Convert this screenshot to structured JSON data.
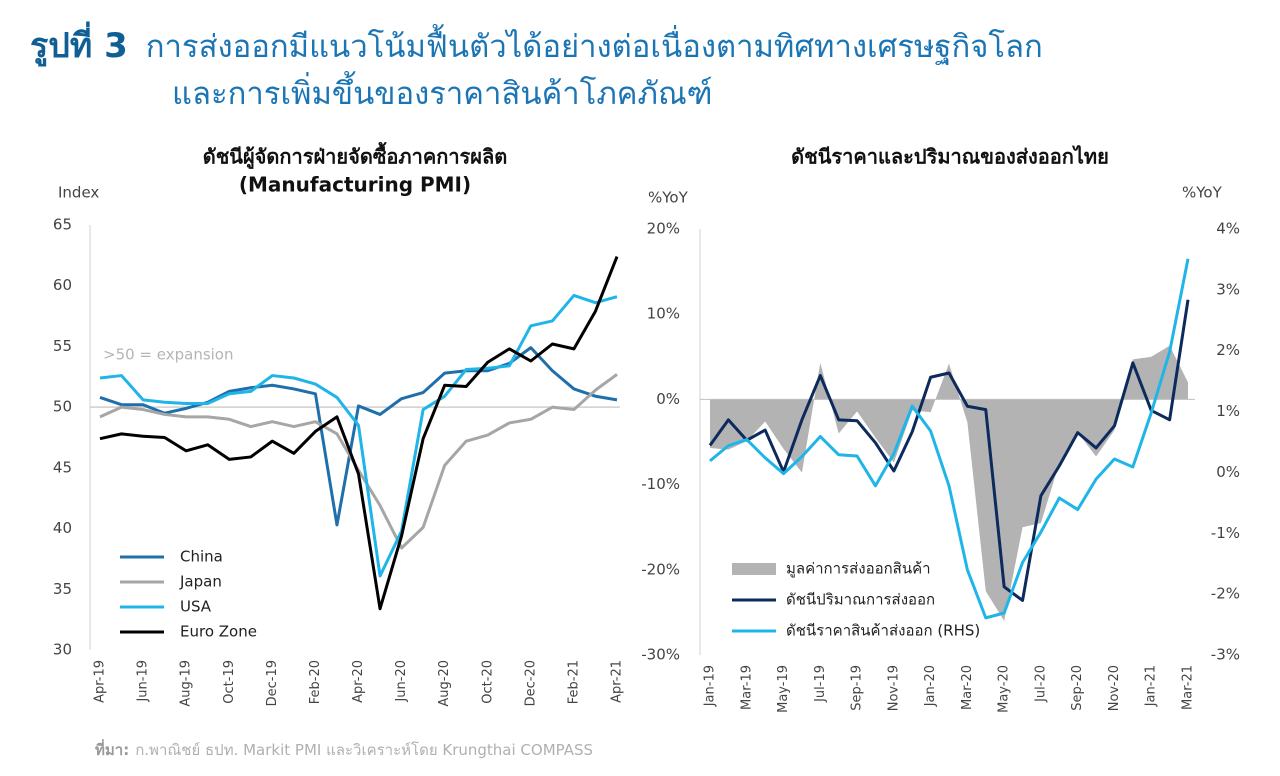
{
  "header": {
    "label": "รูปที่ 3",
    "title": [
      "การส่งออกมีแนวโน้มฟื้นตัวได้อย่างต่อเนื่องตามทิศทางเศรษฐกิจโลก",
      "และการเพิ่มขึ้นของราคาสินค้าโภคภัณฑ์"
    ]
  },
  "source": {
    "label": "ที่มา:",
    "text": "ก.พาณิชย์ ธปท. Markit PMI และวิเคราะห์โดย Krungthai COMPASS"
  },
  "chart_data": [
    {
      "type": "line",
      "title": [
        "ดัชนีผู้จัดการฝ่ายจัดซื้อภาคการผลิต",
        "(Manufacturing PMI)"
      ],
      "ylabel": "Index",
      "annotation": ">50 = expansion",
      "hline": 50,
      "legend": "lower left",
      "categories": [
        "Apr-19",
        null,
        "Jun-19",
        null,
        "Aug-19",
        null,
        "Oct-19",
        null,
        "Dec-19",
        null,
        "Feb-20",
        null,
        "Apr-20",
        null,
        "Jun-20",
        null,
        "Aug-20",
        null,
        "Oct-20",
        null,
        "Dec-20",
        null,
        "Feb-21",
        null,
        "Apr-21"
      ],
      "ylim": [
        30,
        65
      ],
      "yticks": [
        30,
        35,
        40,
        45,
        50,
        55,
        60,
        65
      ],
      "series": [
        {
          "name": "China",
          "color": "#1f6fad",
          "values": [
            50.8,
            50.2,
            50.2,
            49.5,
            49.9,
            50.4,
            51.3,
            51.6,
            51.8,
            51.5,
            51.1,
            40.3,
            50.1,
            49.4,
            50.7,
            51.2,
            52.8,
            53.0,
            53.0,
            53.6,
            54.9,
            53.0,
            51.5,
            50.9,
            50.6
          ]
        },
        {
          "name": "Japan",
          "color": "#a6a6a6",
          "values": [
            49.2,
            50.0,
            49.8,
            49.4,
            49.2,
            49.2,
            49.0,
            48.4,
            48.8,
            48.4,
            48.8,
            47.8,
            44.8,
            41.9,
            38.4,
            40.1,
            45.2,
            47.2,
            47.7,
            48.7,
            49.0,
            50.0,
            49.8,
            51.4,
            52.7
          ]
        },
        {
          "name": "USA",
          "color": "#1fb5e8",
          "values": [
            52.4,
            52.6,
            50.6,
            50.4,
            50.3,
            50.3,
            51.1,
            51.3,
            52.6,
            52.4,
            51.9,
            50.8,
            48.5,
            36.1,
            39.8,
            49.8,
            50.9,
            53.1,
            53.2,
            53.4,
            56.7,
            57.1,
            59.2,
            58.6,
            59.1
          ]
        },
        {
          "name": "Euro Zone",
          "color": "#000000",
          "values": [
            47.4,
            47.8,
            47.6,
            47.5,
            46.4,
            46.9,
            45.7,
            45.9,
            47.2,
            46.2,
            48.0,
            49.2,
            44.5,
            33.4,
            39.4,
            47.4,
            51.8,
            51.7,
            53.7,
            54.8,
            53.8,
            55.2,
            54.8,
            57.9,
            62.4
          ]
        }
      ]
    },
    {
      "type": "line",
      "title": [
        "ดัชนีราคาและปริมาณของส่งออกไทย"
      ],
      "ylabel": "%YoY",
      "y2label": "%YoY",
      "legend": "lower left",
      "categories": [
        "Jan-19",
        null,
        "Mar-19",
        null,
        "May-19",
        null,
        "Jul-19",
        null,
        "Sep-19",
        null,
        "Nov-19",
        null,
        "Jan-20",
        null,
        "Mar-20",
        null,
        "May-20",
        null,
        "Jul-20",
        null,
        "Sep-20",
        null,
        "Nov-20",
        null,
        "Jan-21",
        null,
        "Mar-21"
      ],
      "ylim": [
        -30,
        20
      ],
      "yticks": [
        {
          "value": -30,
          "label": "-30%"
        },
        {
          "value": -20,
          "label": "-20%"
        },
        {
          "value": -10,
          "label": "-10%"
        },
        {
          "value": 0,
          "label": "0%"
        },
        {
          "value": 10,
          "label": "10%"
        },
        {
          "value": 20,
          "label": "20%"
        }
      ],
      "y2lim": [
        -3,
        4
      ],
      "y2ticks": [
        {
          "value": -3,
          "label": "-3%"
        },
        {
          "value": -2,
          "label": "-2%"
        },
        {
          "value": -1,
          "label": "-1%"
        },
        {
          "value": 0,
          "label": "0%"
        },
        {
          "value": 1,
          "label": "1%"
        },
        {
          "value": 2,
          "label": "2%"
        },
        {
          "value": 3,
          "label": "3%"
        },
        {
          "value": 4,
          "label": "4%"
        }
      ],
      "series": [
        {
          "name": "มูลค่าการส่งออกสินค้า",
          "type": "area",
          "color": "#b3b3b3",
          "values": [
            -5.7,
            -5.9,
            -4.9,
            -2.6,
            -5.8,
            -8.6,
            4.3,
            -4.0,
            -1.4,
            -4.5,
            -7.4,
            -1.3,
            -1.5,
            4.2,
            -2.7,
            -22.5,
            -26.0,
            -15.0,
            -14.5,
            -7.5,
            -3.9,
            -6.7,
            -3.6,
            4.7,
            5.0,
            6.3,
            2.0
          ]
        },
        {
          "name": "ดัชนีปริมาณการส่งออก",
          "color": "#0d2a5c",
          "values": [
            -5.4,
            -2.4,
            -4.8,
            -3.6,
            -8.5,
            -2.4,
            2.8,
            -2.4,
            -2.5,
            -5.1,
            -8.4,
            -3.8,
            2.6,
            3.1,
            -0.8,
            -1.2,
            -22.0,
            -23.6,
            -11.3,
            -7.8,
            -3.9,
            -5.7,
            -3.1,
            4.3,
            -1.3,
            -2.4,
            11.7
          ]
        },
        {
          "name": "ดัชนีราคาสินค้าส่งออก (RHS)",
          "axis": "y2",
          "color": "#1fb5e8",
          "values": [
            0.19,
            0.44,
            0.54,
            0.24,
            -0.02,
            0.26,
            0.59,
            0.29,
            0.27,
            -0.22,
            0.31,
            1.09,
            0.68,
            -0.22,
            -1.6,
            -2.39,
            -2.31,
            -1.48,
            -0.98,
            -0.42,
            -0.61,
            -0.11,
            0.22,
            0.09,
            0.98,
            1.98,
            3.51
          ]
        }
      ]
    }
  ]
}
